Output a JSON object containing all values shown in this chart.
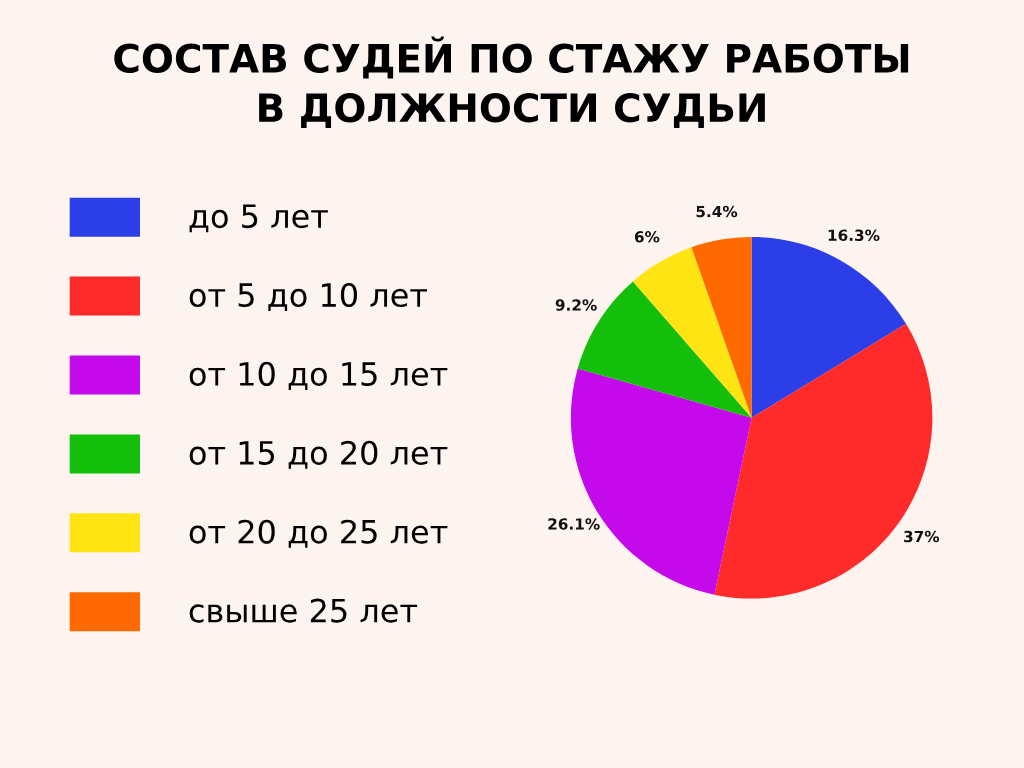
{
  "chart_data": {
    "type": "pie",
    "title": "СОСТАВ СУДЕЙ ПО СТАЖУ РАБОТЫ\nВ ДОЛЖНОСТИ СУДЬИ",
    "categories": [
      "до 5 лет",
      "от 5 до 10 лет",
      "от 10 до 15 лет",
      "от 15 до 20 лет",
      "от 20 до 25 лет",
      "свыше 25 лет"
    ],
    "values": [
      16.3,
      37,
      26.1,
      9.2,
      6,
      5.4
    ],
    "value_labels": [
      "16.3%",
      "37%",
      "26.1%",
      "9.2%",
      "6%",
      "5.4%"
    ],
    "colors": [
      "#2b3ee8",
      "#ff2a2a",
      "#c409eb",
      "#13bf0b",
      "#ffe413",
      "#ff6a00"
    ],
    "legend": "left"
  }
}
